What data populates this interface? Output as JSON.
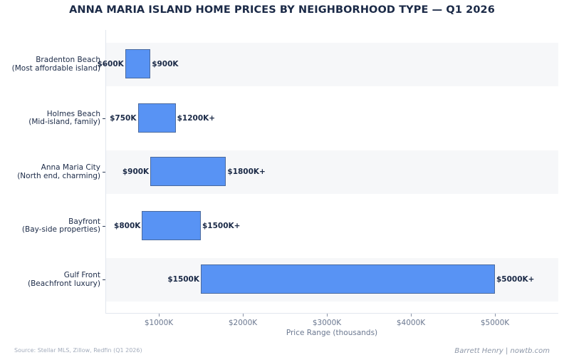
{
  "title": "ANNA MARIA ISLAND HOME PRICES BY NEIGHBORHOOD TYPE — Q1 2026",
  "xlabel": "Price Range (thousands)",
  "source": "Source: Stellar MLS, Zillow, Redfin (Q1 2026)",
  "credit": "Barrett Henry | nowtb.com",
  "colors": {
    "bar": "#5893f4",
    "bar_edge": "#4a6a9e",
    "band": "#f6f7f9",
    "text": "#1b2a47",
    "axis_text": "#6b7890"
  },
  "x_ticks": [
    "$1000K",
    "$2000K",
    "$3000K",
    "$4000K",
    "$5000K"
  ],
  "categories": [
    {
      "line1": "Bradenton Beach",
      "line2": "(Most affordable island)",
      "low_label": "$600K",
      "high_label": "$900K"
    },
    {
      "line1": "Holmes Beach",
      "line2": "(Mid-island, family)",
      "low_label": "$750K",
      "high_label": "$1200K+"
    },
    {
      "line1": "Anna Maria City",
      "line2": "(North end, charming)",
      "low_label": "$900K",
      "high_label": "$1800K+"
    },
    {
      "line1": "Bayfront",
      "line2": "(Bay-side properties)",
      "low_label": "$800K",
      "high_label": "$1500K+"
    },
    {
      "line1": "Gulf Front",
      "line2": "(Beachfront luxury)",
      "low_label": "$1500K",
      "high_label": "$5000K+"
    }
  ],
  "chart_data": {
    "type": "bar",
    "orientation": "horizontal-range",
    "title": "ANNA MARIA ISLAND HOME PRICES BY NEIGHBORHOOD TYPE — Q1 2026",
    "xlabel": "Price Range (thousands)",
    "ylabel": "",
    "categories": [
      "Bradenton Beach (Most affordable island)",
      "Holmes Beach (Mid-island, family)",
      "Anna Maria City (North end, charming)",
      "Bayfront (Bay-side properties)",
      "Gulf Front (Beachfront luxury)"
    ],
    "series": [
      {
        "name": "Low",
        "values": [
          600,
          750,
          900,
          800,
          1500
        ]
      },
      {
        "name": "High",
        "values": [
          900,
          1200,
          1800,
          1500,
          5000
        ]
      }
    ],
    "x_tick_labels": [
      "$1000K",
      "$2000K",
      "$3000K",
      "$4000K",
      "$5000K"
    ],
    "x_ticks": [
      1000,
      2000,
      3000,
      4000,
      5000
    ],
    "xlim": [
      360,
      5800
    ],
    "grid": false,
    "alternating_bands": true,
    "legend": null
  }
}
